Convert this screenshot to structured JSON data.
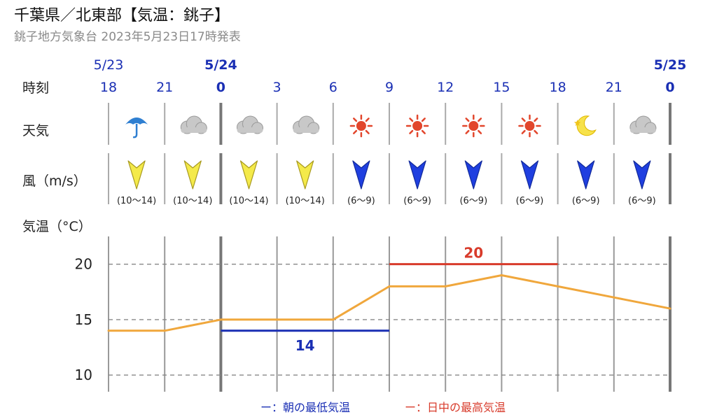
{
  "header": {
    "title": "千葉県／北東部【気温：銚子】",
    "subtitle": "銚子地方気象台 2023年5月23日17時発表"
  },
  "row_labels": {
    "time": "時刻",
    "weather": "天気",
    "wind": "風（m/s）",
    "temp": "気温（°C）"
  },
  "legend": {
    "min_label": "ー：朝の最低気温",
    "max_label": "ー：日中の最高気温"
  },
  "colors": {
    "date_blue": "#1a2fb4",
    "line_orange": "#f0a73c",
    "min_blue": "#1a2fb4",
    "max_red": "#d83b2b",
    "wind_yellow": "#f4ea4a",
    "wind_blue": "#1f3fe0",
    "grid": "#888888"
  },
  "chart_data": {
    "type": "line",
    "dates": [
      {
        "label": "5/23",
        "at": "18",
        "bold": false
      },
      {
        "label": "5/24",
        "at": "0",
        "bold": true
      },
      {
        "label": "5/25",
        "at": "0",
        "bold": true
      }
    ],
    "hours": [
      "18",
      "21",
      "0",
      "3",
      "6",
      "9",
      "12",
      "15",
      "18",
      "21",
      "0"
    ],
    "bold_hours": [
      2,
      10
    ],
    "weather": [
      "rain-umbrella-icon",
      "cloud-icon",
      "cloud-icon",
      "cloud-icon",
      "sun-icon",
      "sun-icon",
      "sun-icon",
      "sun-icon",
      "moon-star-icon",
      "cloud-icon"
    ],
    "wind": [
      {
        "speed": "(10〜14)",
        "strong": true
      },
      {
        "speed": "(10〜14)",
        "strong": true
      },
      {
        "speed": "(10〜14)",
        "strong": true
      },
      {
        "speed": "(10〜14)",
        "strong": true
      },
      {
        "speed": "(6〜9)",
        "strong": false
      },
      {
        "speed": "(6〜9)",
        "strong": false
      },
      {
        "speed": "(6〜9)",
        "strong": false
      },
      {
        "speed": "(6〜9)",
        "strong": false
      },
      {
        "speed": "(6〜9)",
        "strong": false
      },
      {
        "speed": "(6〜9)",
        "strong": false
      }
    ],
    "temperature": [
      14,
      14,
      15,
      15,
      15,
      18,
      18,
      19,
      18,
      17,
      16
    ],
    "ylim": [
      8.5,
      22.5
    ],
    "yticks": [
      10,
      15,
      20
    ],
    "min_temp": {
      "value": 14,
      "label": "14",
      "from": 2,
      "to": 5
    },
    "max_temp": {
      "value": 20,
      "label": "20",
      "from": 5,
      "to": 8
    }
  }
}
